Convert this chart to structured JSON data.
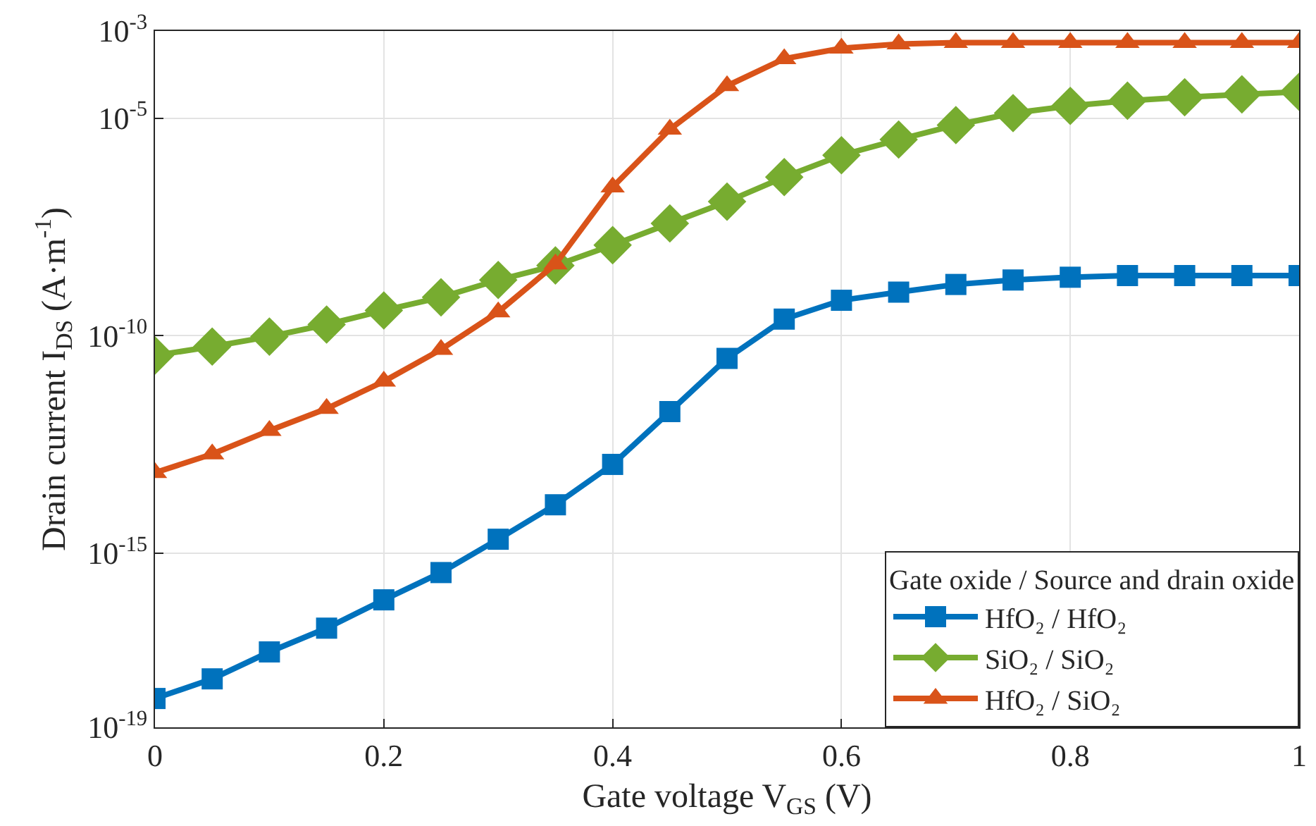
{
  "chart_data": {
    "type": "line",
    "xlabel": "Gate voltage V$_{GS}$ (V)",
    "ylabel": "Drain current I$_{DS}$ (A·m$^{-1}$)",
    "legend_title": "Gate oxide / Source and drain oxide",
    "x": [
      0,
      0.05,
      0.1,
      0.15,
      0.2,
      0.25,
      0.3,
      0.35,
      0.4,
      0.45,
      0.5,
      0.55,
      0.6,
      0.65,
      0.7,
      0.75,
      0.8,
      0.85,
      0.9,
      0.95,
      1
    ],
    "series": [
      {
        "name": "HfO₂ / HfO₂",
        "color": "#0072bd",
        "marker": "square",
        "values": [
          4.6e-19,
          1.3e-18,
          5.4e-18,
          1.9e-17,
          8.5e-17,
          3.6e-16,
          2.1e-15,
          1.3e-14,
          1.1e-13,
          1.8e-12,
          3e-11,
          2.4e-10,
          6.5e-10,
          1e-09,
          1.5e-09,
          1.9e-09,
          2.2e-09,
          2.4e-09,
          2.4e-09,
          2.4e-09,
          2.4e-09
        ]
      },
      {
        "name": "SiO₂ / SiO₂",
        "color": "#77ac30",
        "marker": "diamond",
        "values": [
          3.5e-11,
          5.6e-11,
          9.5e-11,
          1.8e-10,
          3.8e-10,
          7.6e-10,
          1.9e-09,
          4.1e-09,
          1.2e-08,
          3.8e-08,
          1.2e-07,
          4.4e-07,
          1.4e-06,
          3.2e-06,
          6.9e-06,
          1.3e-05,
          1.9e-05,
          2.5e-05,
          3e-05,
          3.5e-05,
          4e-05
        ]
      },
      {
        "name": "HfO₂ / SiO₂",
        "color": "#d95319",
        "marker": "triangle",
        "values": [
          7.1e-14,
          1.9e-13,
          6.6e-13,
          2.1e-12,
          8.9e-12,
          4.8e-11,
          3.5e-10,
          4.4e-09,
          2.6e-07,
          5.5e-06,
          5.5e-05,
          0.00023,
          0.0004,
          0.0005,
          0.00054,
          0.00054,
          0.00054,
          0.00054,
          0.00054,
          0.00054,
          0.00054
        ]
      }
    ],
    "xlim": [
      0,
      1
    ],
    "xticks": [
      0,
      0.2,
      0.4,
      0.6,
      0.8,
      1
    ],
    "ylim": [
      1e-19,
      0.001
    ],
    "log": true,
    "yticks": [
      {
        "value": 1e-19,
        "label": "10$^{-19}$"
      },
      {
        "value": 1e-15,
        "label": "10$^{-15}$"
      },
      {
        "value": 1e-10,
        "label": "10$^{-10}$"
      },
      {
        "value": 1e-05,
        "label": "10$^{-5}$"
      },
      {
        "value": 0.001,
        "label": "10$^{-3}$"
      }
    ],
    "grid": true,
    "legend": "bottom right",
    "line_style": "solid"
  }
}
